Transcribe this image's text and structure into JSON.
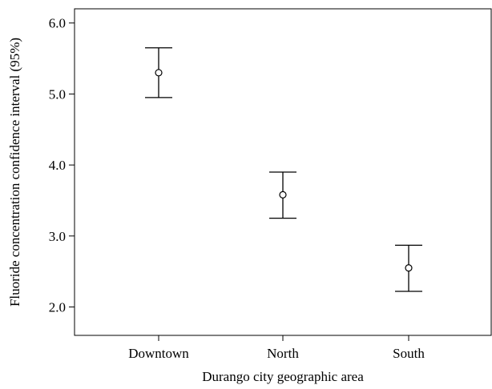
{
  "chart_data": {
    "type": "scatter",
    "subtype": "error-bar",
    "title": "",
    "xlabel": "Durango city geographic area",
    "ylabel": "Fluoride concentration confidence interval (95%)",
    "ylim": [
      1.6,
      6.2
    ],
    "yticks": [
      "2.0",
      "3.0",
      "4.0",
      "5.0",
      "6.0"
    ],
    "grid": false,
    "legend": "none",
    "categories": [
      "Downtown",
      "North",
      "South"
    ],
    "series": [
      {
        "mean": [
          5.3,
          3.58,
          2.55
        ],
        "lower": [
          4.95,
          3.25,
          2.22
        ],
        "upper": [
          5.65,
          3.9,
          2.87
        ]
      }
    ]
  }
}
